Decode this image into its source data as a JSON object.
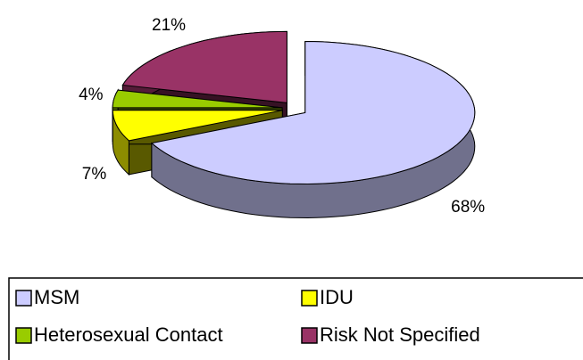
{
  "chart_data": {
    "type": "pie",
    "categories": [
      "MSM",
      "IDU",
      "Heterosexual Contact",
      "Risk Not Specified"
    ],
    "values": [
      68,
      7,
      4,
      21
    ],
    "value_labels": [
      "68%",
      "7%",
      "4%",
      "21%"
    ],
    "colors": [
      "#ccccff",
      "#ffff00",
      "#99cc00",
      "#993366"
    ]
  }
}
